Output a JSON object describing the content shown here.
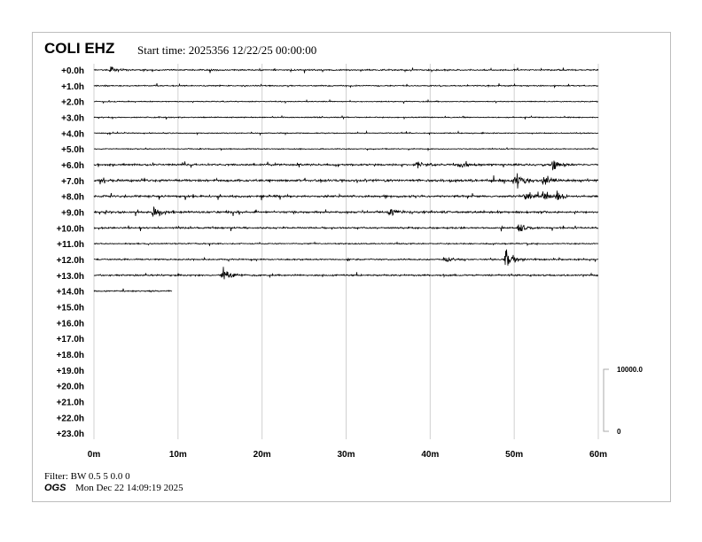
{
  "header": {
    "station": "COLI EHZ",
    "start_time": "Start time: 2025356 12/22/25 00:00:00"
  },
  "footer": {
    "filter": "Filter: BW 0.5 5 0.0 0",
    "agency": "OGS",
    "printed": "Mon Dec 22 14:09:19 2025"
  },
  "chart_data": {
    "type": "line",
    "title": "COLI EHZ",
    "row_labels": [
      "+0.0h",
      "+1.0h",
      "+2.0h",
      "+3.0h",
      "+4.0h",
      "+5.0h",
      "+6.0h",
      "+7.0h",
      "+8.0h",
      "+9.0h",
      "+10.0h",
      "+11.0h",
      "+12.0h",
      "+13.0h",
      "+14.0h",
      "+15.0h",
      "+16.0h",
      "+17.0h",
      "+18.0h",
      "+19.0h",
      "+20.0h",
      "+21.0h",
      "+22.0h",
      "+23.0h"
    ],
    "x_ticks": [
      "0m",
      "10m",
      "20m",
      "30m",
      "40m",
      "50m",
      "60m"
    ],
    "xlim": [
      0,
      60
    ],
    "grid": true,
    "scale": {
      "top_label": "10000.0",
      "bottom_label": "0"
    },
    "data_end": {
      "hour": 14,
      "minute": 9.3
    },
    "noise_level": [
      0.6,
      0.5,
      0.4,
      0.45,
      0.4,
      0.4,
      0.8,
      1.0,
      0.9,
      0.9,
      0.7,
      0.5,
      0.6,
      0.7,
      0.6
    ],
    "events": [
      {
        "hour": 0,
        "minute": 2.0,
        "amp": 2
      },
      {
        "hour": 6,
        "minute": 38.4,
        "amp": 2
      },
      {
        "hour": 6,
        "minute": 43.5,
        "amp": 3
      },
      {
        "hour": 6,
        "minute": 54.7,
        "amp": 5
      },
      {
        "hour": 7,
        "minute": 50.2,
        "amp": 6
      },
      {
        "hour": 7,
        "minute": 53.5,
        "amp": 2.5
      },
      {
        "hour": 8,
        "minute": 51.3,
        "amp": 3.5
      },
      {
        "hour": 8,
        "minute": 53.4,
        "amp": 4
      },
      {
        "hour": 8,
        "minute": 55.0,
        "amp": 3
      },
      {
        "hour": 9,
        "minute": 7.1,
        "amp": 5
      },
      {
        "hour": 9,
        "minute": 35.2,
        "amp": 2.5
      },
      {
        "hour": 10,
        "minute": 50.5,
        "amp": 4
      },
      {
        "hour": 12,
        "minute": 41.9,
        "amp": 2
      },
      {
        "hour": 12,
        "minute": 49.0,
        "amp": 7
      },
      {
        "hour": 13,
        "minute": 15.4,
        "amp": 4
      }
    ]
  }
}
